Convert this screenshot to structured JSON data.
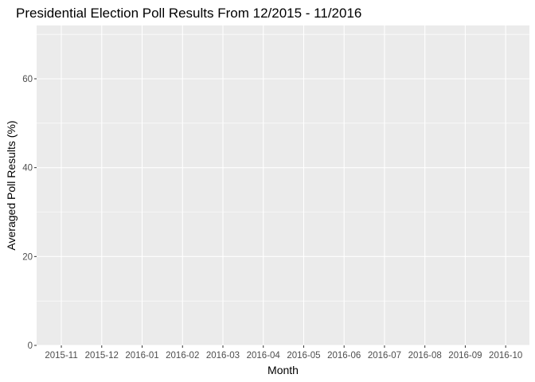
{
  "chart_data": {
    "type": "bar",
    "title": "Presidential Election Poll Results From 12/2015 - 11/2016",
    "xlabel": "Month",
    "ylabel": "Averaged Poll Results (%)",
    "categories": [
      "2015-11",
      "2015-12",
      "2016-01",
      "2016-02",
      "2016-03",
      "2016-04",
      "2016-05",
      "2016-06",
      "2016-07",
      "2016-08",
      "2016-09",
      "2016-10"
    ],
    "y_ticks": [
      0,
      20,
      40,
      60
    ],
    "y_tick_labels": [
      "0",
      "20",
      "40",
      "60"
    ],
    "ylim": [
      0,
      72
    ],
    "series": [],
    "grid": true,
    "panel_background": "#ebebeb",
    "grid_color": "#ffffff",
    "tick_color": "#4d4d4d"
  }
}
